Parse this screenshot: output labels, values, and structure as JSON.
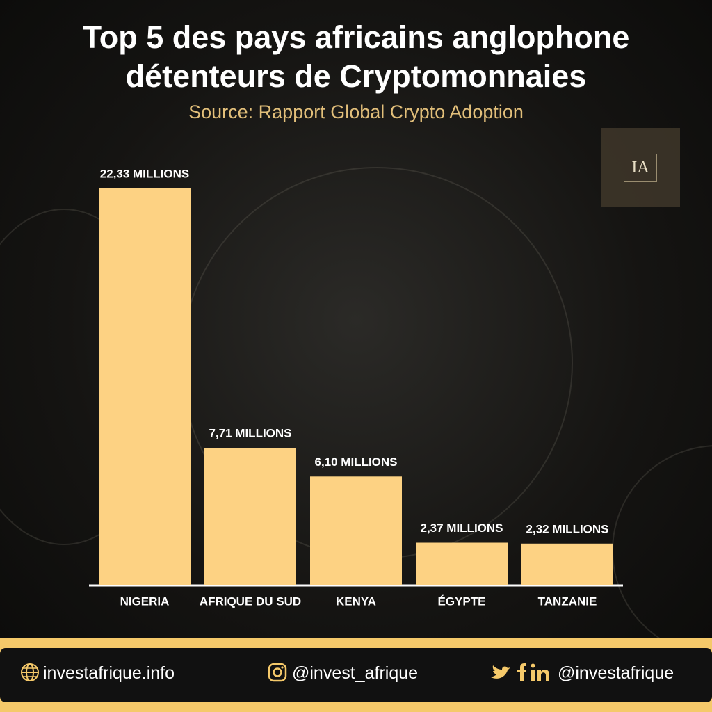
{
  "chart_data": {
    "type": "bar",
    "title": "Top 5 des pays africains anglophone détenteurs de Cryptomonnaies",
    "subtitle": "Source: Rapport Global Crypto Adoption",
    "categories": [
      "NIGERIA",
      "AFRIQUE DU SUD",
      "KENYA",
      "ÉGYPTE",
      "TANZANIE"
    ],
    "values": [
      22.33,
      7.71,
      6.1,
      2.37,
      2.32
    ],
    "value_labels": [
      "22,33 MILLIONS",
      "7,71 MILLIONS",
      "6,10 MILLIONS",
      "2,37 MILLIONS",
      "2,32 MILLIONS"
    ],
    "color": "#fdd283"
  },
  "logo": "IA",
  "footer": {
    "website": "investafrique.info",
    "instagram": "@invest_afrique",
    "social": "@investafrique"
  }
}
